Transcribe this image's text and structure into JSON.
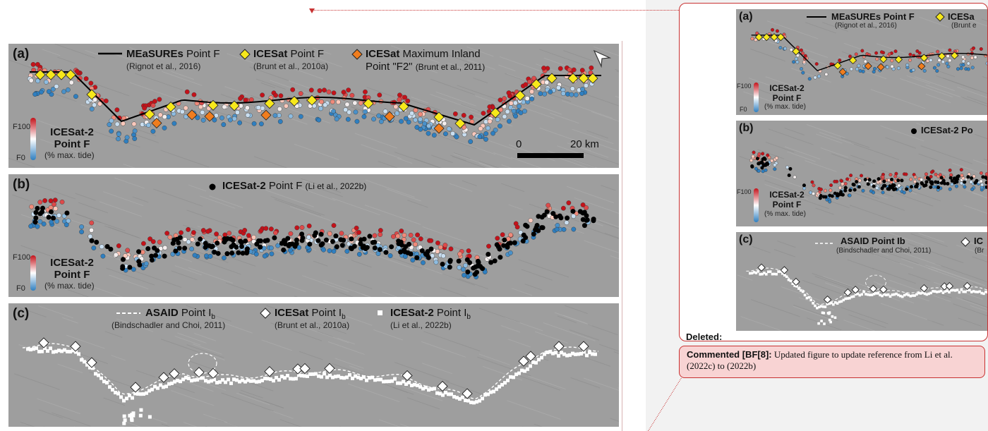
{
  "figure": {
    "panel_a": {
      "letter": "(a)",
      "legend": [
        {
          "bold": "MEaSUREs",
          "rest": " Point F",
          "cite": "(Rignot et al., 2016)"
        },
        {
          "bold": "ICESat",
          "rest": " Point F",
          "cite": "(Brunt et al., 2010a)"
        },
        {
          "bold": "ICESat",
          "rest": " Maximum Inland",
          "line2": "Point \"F2\"",
          "cite": "(Brunt et al., 2011)"
        }
      ],
      "colorbar_title_1": "ICESat-2",
      "colorbar_title_2": "Point F",
      "colorbar_sub": "(% max. tide)",
      "f100": "F100",
      "f0": "F0",
      "scale_left": "0",
      "scale_right": "20 km"
    },
    "panel_b": {
      "letter": "(b)",
      "legend": {
        "bold": "ICESat-2",
        "rest": " Point F",
        "cite": "(Li et al., 2022b)"
      },
      "colorbar_title_1": "ICESat-2",
      "colorbar_title_2": "Point F",
      "colorbar_sub": "(% max. tide)",
      "f100": "F100",
      "f0": "F0"
    },
    "panel_c": {
      "letter": "(c)",
      "legend": [
        {
          "bold": "ASAID",
          "rest": " Point I",
          "sub": "b",
          "cite": "(Bindschadler and Choi, 2011)"
        },
        {
          "bold": "ICESat",
          "rest": " Point I",
          "sub": "b",
          "cite": "(Brunt et al., 2010a)"
        },
        {
          "bold": "ICESat-2",
          "rest": " Point I",
          "sub": "b",
          "cite": "(Li et al., 2022b)"
        }
      ]
    }
  },
  "revision_pane": {
    "deleted_label": "Deleted:",
    "snapshot": {
      "a_letter": "(a)",
      "a_legend_1": "MEaSUREs Point F",
      "a_cite_1": "(Rignot et al., 2016)",
      "a_legend_2": "ICESa",
      "a_cite_2": "(Brunt e",
      "b_letter": "(b)",
      "b_legend": "ICESat-2 Po",
      "c_letter": "(c)",
      "c_legend": "ASAID Point Ib",
      "c_cite": "(Bindschadler and Choi, 2011)",
      "c_legend_2": "IC",
      "c_cite_2": "(Br",
      "cbar_title_1": "ICESat-2",
      "cbar_title_2": "Point F",
      "cbar_sub": "(% max. tide)",
      "f100": "F100",
      "f0": "F0"
    },
    "comment": {
      "author": "Commented [BF[8]:",
      "text": " Updated figure to update reference from Li et al. (2022c) to (2022b)"
    }
  },
  "colors": {
    "accent_red": "#c83232",
    "comment_bg": "#f8d3d3",
    "icesat_yellow": "#f7e81b",
    "f2_orange": "#f07d1e",
    "high_red": "#c4121a",
    "low_blue": "#2f7fc0"
  }
}
